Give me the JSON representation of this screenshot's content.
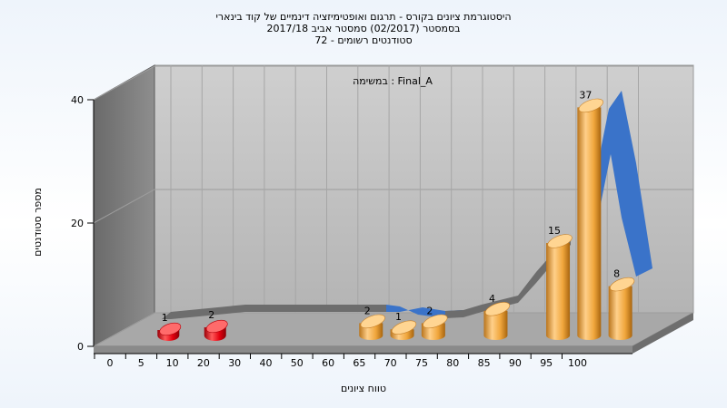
{
  "chart_data": {
    "type": "bar",
    "title_lines": [
      "היסטוגרמת ציונים בקורס - תרגום ואופטימיזציה דינמיים של קוד בינארי",
      "בסמסטר  (02/2017)  סמסטר אביב 2017/18",
      "סטודנטים רשומים - 72"
    ],
    "annotation": "במשימה : Final_A",
    "xlabel": "טווח ציונים",
    "ylabel": "מספר סטודנטים",
    "ylim": [
      0,
      40
    ],
    "yticks": [
      "0",
      "20",
      "40"
    ],
    "xticks": [
      "0",
      "5",
      "10",
      "20",
      "30",
      "40",
      "50",
      "60",
      "65",
      "70",
      "75",
      "80",
      "85",
      "90",
      "95",
      "100"
    ],
    "bars": [
      {
        "tick_index": 1,
        "value": 1,
        "label": "1",
        "color": "red"
      },
      {
        "tick_index": 2.5,
        "value": 2,
        "label": "2",
        "color": "red"
      },
      {
        "tick_index": 7.5,
        "value": 2,
        "label": "2",
        "color": "orange"
      },
      {
        "tick_index": 8.5,
        "value": 1,
        "label": "1",
        "color": "orange"
      },
      {
        "tick_index": 9.5,
        "value": 2,
        "label": "2",
        "color": "orange"
      },
      {
        "tick_index": 11.5,
        "value": 4,
        "label": "4",
        "color": "orange"
      },
      {
        "tick_index": 13.5,
        "value": 15,
        "label": "15",
        "color": "orange"
      },
      {
        "tick_index": 14.5,
        "value": 37,
        "label": "37",
        "color": "orange"
      },
      {
        "tick_index": 15.5,
        "value": 8,
        "label": "8",
        "color": "orange"
      }
    ],
    "colors": {
      "red": "#e3000f",
      "orange": "#f0a63c",
      "curve_gray": "#6d6d6d",
      "curve_blue": "#3a73c9",
      "back_wall": "#c8c8c8",
      "side_wall": "#808080",
      "floor": "#a8a8a8"
    },
    "grid": true
  }
}
